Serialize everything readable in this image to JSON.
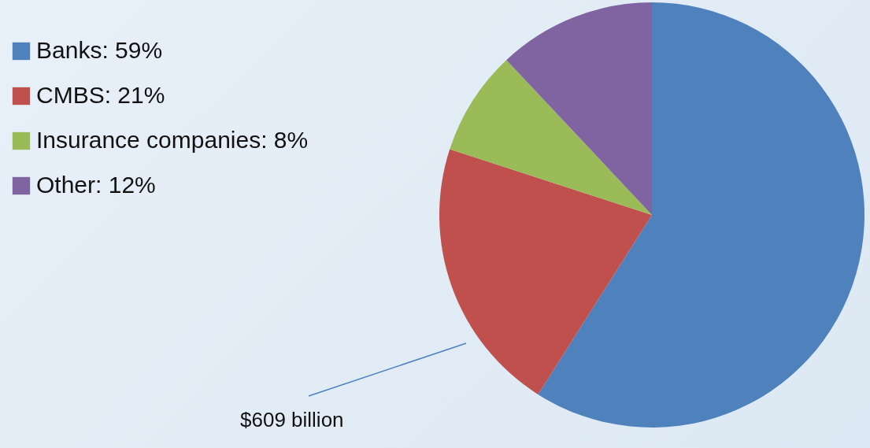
{
  "chart_data": {
    "type": "pie",
    "categories": [
      "Banks: 59%",
      "CMBS: 21%",
      "Insurance companies: 8%",
      "Other: 12%"
    ],
    "values": [
      59,
      21,
      8,
      12
    ],
    "colors": [
      "#4f81bd",
      "#c0504d",
      "#9bbb59",
      "#8064a2"
    ],
    "legend": "top left",
    "annotations": [
      "$609 billion"
    ]
  }
}
